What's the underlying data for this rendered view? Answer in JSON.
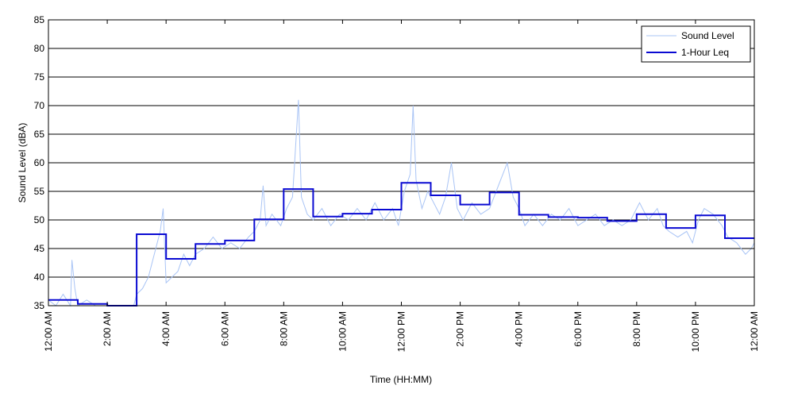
{
  "chart_data": {
    "type": "line",
    "xlabel": "Time (HH:MM)",
    "ylabel": "Sound Level (dBA)",
    "ylim": [
      35,
      85
    ],
    "xlim_hours": [
      0,
      24
    ],
    "y_ticks": [
      "35",
      "40",
      "45",
      "50",
      "55",
      "60",
      "65",
      "70",
      "75",
      "80",
      "85"
    ],
    "x_ticks": [
      {
        "hour": 0,
        "label": "12:00 AM"
      },
      {
        "hour": 2,
        "label": "2:00 AM"
      },
      {
        "hour": 4,
        "label": "4:00 AM"
      },
      {
        "hour": 6,
        "label": "6:00 AM"
      },
      {
        "hour": 8,
        "label": "8:00 AM"
      },
      {
        "hour": 10,
        "label": "10:00 AM"
      },
      {
        "hour": 12,
        "label": "12:00 PM"
      },
      {
        "hour": 14,
        "label": "2:00 PM"
      },
      {
        "hour": 16,
        "label": "4:00 PM"
      },
      {
        "hour": 18,
        "label": "6:00 PM"
      },
      {
        "hour": 20,
        "label": "8:00 PM"
      },
      {
        "hour": 22,
        "label": "10:00 PM"
      },
      {
        "hour": 24,
        "label": "12:00 AM"
      }
    ],
    "grid": "horizontal",
    "legend_position": "top-right",
    "series": [
      {
        "name": "Sound Level",
        "color": "#a9c4f5",
        "style": "thin-line",
        "points": [
          [
            0.0,
            36
          ],
          [
            0.25,
            35
          ],
          [
            0.5,
            37
          ],
          [
            0.75,
            35
          ],
          [
            0.8,
            43
          ],
          [
            0.9,
            38
          ],
          [
            1.0,
            35
          ],
          [
            1.3,
            36
          ],
          [
            1.6,
            35
          ],
          [
            1.9,
            35
          ],
          [
            2.0,
            35
          ],
          [
            2.9,
            35
          ],
          [
            3.0,
            37
          ],
          [
            3.2,
            38
          ],
          [
            3.4,
            40
          ],
          [
            3.6,
            44
          ],
          [
            3.8,
            48
          ],
          [
            3.9,
            52
          ],
          [
            4.0,
            39
          ],
          [
            4.2,
            40
          ],
          [
            4.4,
            41
          ],
          [
            4.6,
            44
          ],
          [
            4.8,
            42
          ],
          [
            5.0,
            44
          ],
          [
            5.3,
            45
          ],
          [
            5.6,
            47
          ],
          [
            5.9,
            45
          ],
          [
            6.2,
            46
          ],
          [
            6.5,
            45
          ],
          [
            6.8,
            47
          ],
          [
            7.0,
            48
          ],
          [
            7.2,
            50
          ],
          [
            7.3,
            56
          ],
          [
            7.4,
            49
          ],
          [
            7.6,
            51
          ],
          [
            7.9,
            49
          ],
          [
            8.1,
            52
          ],
          [
            8.3,
            54
          ],
          [
            8.5,
            71
          ],
          [
            8.6,
            54
          ],
          [
            8.8,
            51
          ],
          [
            9.0,
            50
          ],
          [
            9.3,
            52
          ],
          [
            9.6,
            49
          ],
          [
            9.9,
            51
          ],
          [
            10.2,
            50
          ],
          [
            10.5,
            52
          ],
          [
            10.8,
            50
          ],
          [
            11.1,
            53
          ],
          [
            11.4,
            50
          ],
          [
            11.7,
            52
          ],
          [
            11.9,
            49
          ],
          [
            12.1,
            55
          ],
          [
            12.3,
            58
          ],
          [
            12.4,
            70
          ],
          [
            12.5,
            57
          ],
          [
            12.7,
            52
          ],
          [
            12.9,
            55
          ],
          [
            13.1,
            53
          ],
          [
            13.3,
            51
          ],
          [
            13.5,
            54
          ],
          [
            13.7,
            60
          ],
          [
            13.9,
            52
          ],
          [
            14.1,
            50
          ],
          [
            14.4,
            53
          ],
          [
            14.7,
            51
          ],
          [
            15.0,
            52
          ],
          [
            15.3,
            56
          ],
          [
            15.6,
            60
          ],
          [
            15.8,
            54
          ],
          [
            16.0,
            52
          ],
          [
            16.2,
            49
          ],
          [
            16.5,
            51
          ],
          [
            16.8,
            49
          ],
          [
            17.1,
            51
          ],
          [
            17.4,
            50
          ],
          [
            17.7,
            52
          ],
          [
            18.0,
            49
          ],
          [
            18.3,
            50
          ],
          [
            18.6,
            51
          ],
          [
            18.9,
            49
          ],
          [
            19.2,
            50
          ],
          [
            19.5,
            49
          ],
          [
            19.8,
            50
          ],
          [
            20.1,
            53
          ],
          [
            20.4,
            50
          ],
          [
            20.7,
            52
          ],
          [
            20.9,
            49
          ],
          [
            21.1,
            48
          ],
          [
            21.4,
            47
          ],
          [
            21.7,
            48
          ],
          [
            21.9,
            46
          ],
          [
            22.1,
            50
          ],
          [
            22.3,
            52
          ],
          [
            22.6,
            51
          ],
          [
            22.9,
            49
          ],
          [
            23.1,
            47
          ],
          [
            23.4,
            46
          ],
          [
            23.7,
            44
          ],
          [
            23.9,
            45
          ],
          [
            24.0,
            46
          ]
        ]
      },
      {
        "name": "1-Hour Leq",
        "color": "#0a0ad2",
        "style": "step",
        "values": [
          36.0,
          35.3,
          34.5,
          47.5,
          43.2,
          45.8,
          46.4,
          50.1,
          55.4,
          50.6,
          51.1,
          51.8,
          56.5,
          54.3,
          52.7,
          54.8,
          50.9,
          50.5,
          50.4,
          49.8,
          51.0,
          48.6,
          50.8,
          46.8
        ]
      }
    ]
  }
}
